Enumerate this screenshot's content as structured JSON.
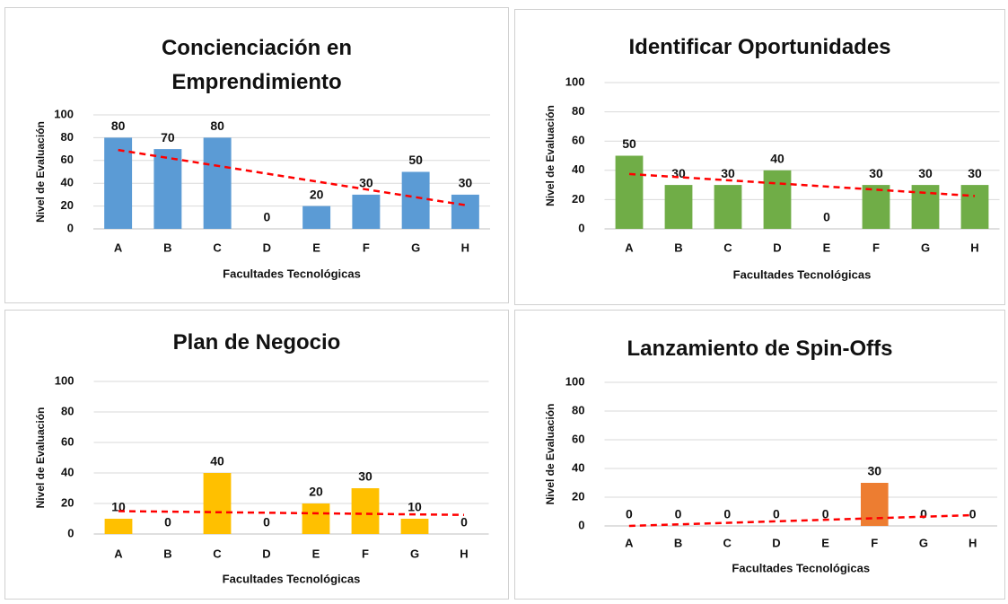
{
  "chart_data": [
    {
      "type": "bar",
      "title": "Concienciación en Emprendimiento",
      "xlabel": "Facultades Tecnológicas",
      "ylabel": "Nivel de Evaluación",
      "categories": [
        "A",
        "B",
        "C",
        "D",
        "E",
        "F",
        "G",
        "H"
      ],
      "values": [
        80,
        70,
        80,
        0,
        20,
        30,
        50,
        30
      ],
      "color": "#5b9bd5",
      "ylim": [
        0,
        100
      ],
      "yticks": [
        0,
        20,
        40,
        60,
        80,
        100
      ],
      "grid": true,
      "trendline": true,
      "trendline_color": "#ff0000"
    },
    {
      "type": "bar",
      "title": "Identificar Oportunidades",
      "xlabel": "Facultades Tecnológicas",
      "ylabel": "Nivel de Evaluación",
      "categories": [
        "A",
        "B",
        "C",
        "D",
        "E",
        "F",
        "G",
        "H"
      ],
      "values": [
        50,
        30,
        30,
        40,
        0,
        30,
        30,
        30
      ],
      "color": "#70ad47",
      "ylim": [
        0,
        100
      ],
      "yticks": [
        0,
        20,
        40,
        60,
        80,
        100
      ],
      "grid": true,
      "trendline": true,
      "trendline_color": "#ff0000"
    },
    {
      "type": "bar",
      "title": "Plan de Negocio",
      "xlabel": "Facultades Tecnológicas",
      "ylabel": "Nivel de Evaluación",
      "categories": [
        "A",
        "B",
        "C",
        "D",
        "E",
        "F",
        "G",
        "H"
      ],
      "values": [
        10,
        0,
        40,
        0,
        20,
        30,
        10,
        0
      ],
      "color": "#ffc000",
      "ylim": [
        0,
        100
      ],
      "yticks": [
        0,
        20,
        40,
        60,
        80,
        100
      ],
      "grid": true,
      "trendline": true,
      "trendline_color": "#ff0000"
    },
    {
      "type": "bar",
      "title": "Lanzamiento de Spin-Offs",
      "xlabel": "Facultades Tecnológicas",
      "ylabel": "Nivel de Evaluación",
      "categories": [
        "A",
        "B",
        "C",
        "D",
        "E",
        "F",
        "G",
        "H"
      ],
      "values": [
        0,
        0,
        0,
        0,
        0,
        30,
        0,
        0
      ],
      "color": "#ed7d31",
      "ylim": [
        0,
        100
      ],
      "yticks": [
        0,
        20,
        40,
        60,
        80,
        100
      ],
      "grid": true,
      "trendline": true,
      "trendline_color": "#ff0000"
    }
  ]
}
